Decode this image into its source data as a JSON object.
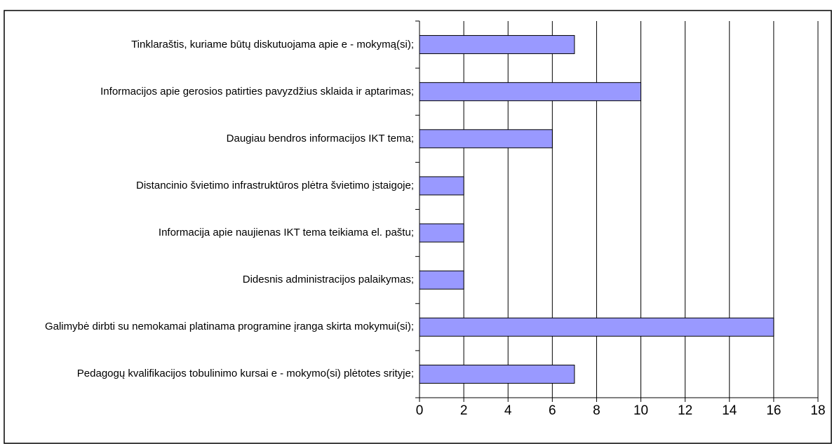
{
  "chart_data": {
    "type": "barh",
    "categories": [
      "Tinklaraštis, kuriame būtų diskutuojama apie e - mokymą(si);",
      "Informacijos apie gerosios patirties pavyzdžius sklaida ir aptarimas;",
      "Daugiau bendros informacijos IKT tema;",
      "Distancinio švietimo infrastruktūros plėtra švietimo įstaigoje;",
      "Informacija apie naujienas IKT tema teikiama el. paštu;",
      "Didesnis administracijos palaikymas;",
      "Galimybė dirbti su nemokamai platinama programine įranga skirta mokymui(si);",
      "Pedagogų kvalifikacijos tobulinimo kursai e - mokymo(si) plėtotes srityje;"
    ],
    "values": [
      7,
      10,
      6,
      2,
      2,
      2,
      16,
      7
    ],
    "color": "#9999ff",
    "xlim": [
      0,
      18
    ],
    "xticks": [
      0,
      2,
      4,
      6,
      8,
      10,
      12,
      14,
      16,
      18
    ],
    "grid": true
  }
}
